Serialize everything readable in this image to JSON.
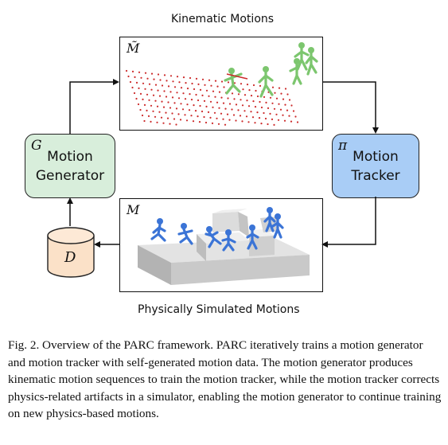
{
  "diagram": {
    "top_title": "Kinematic Motions",
    "bottom_title": "Physically Simulated Motions",
    "top_panel_symbol": "M̃",
    "bottom_panel_symbol": "M",
    "generator": {
      "symbol": "G",
      "line1": "Motion",
      "line2": "Generator",
      "color": "#d8eedb"
    },
    "tracker": {
      "symbol": "π",
      "line1": "Motion",
      "line2": "Tracker",
      "color": "#a9cdf6"
    },
    "dataset": {
      "symbol": "D",
      "color": "#fbe1c8"
    }
  },
  "caption": {
    "label": "Fig. 2.",
    "text": "Overview of the PARC framework. PARC iteratively trains a motion generator and motion tracker with self-generated motion data. The motion generator produces kinematic motion sequences to train the motion tracker, while the motion tracker corrects physics-related artifacts in a simulator, enabling the motion generator to continue training on new physics-based motions."
  }
}
